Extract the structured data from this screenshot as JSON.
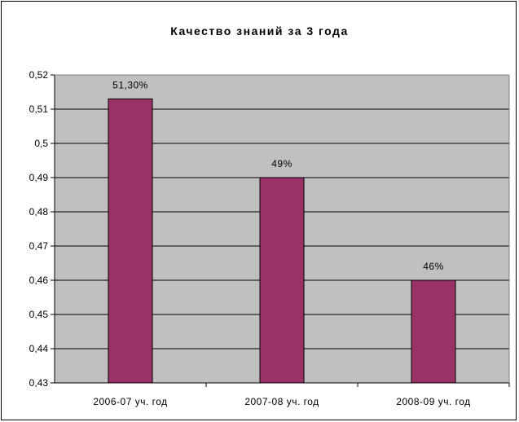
{
  "chart_data": {
    "type": "bar",
    "title": "Качество знаний за 3 года",
    "categories": [
      "2006-07 уч. год",
      "2007-08 уч. год",
      "2008-09 уч. год"
    ],
    "values": [
      0.513,
      0.49,
      0.46
    ],
    "data_labels": [
      "51,30%",
      "49%",
      "46%"
    ],
    "ylim": [
      0.43,
      0.52
    ],
    "yticks": [
      0.43,
      0.44,
      0.45,
      0.46,
      0.47,
      0.48,
      0.49,
      0.5,
      0.51,
      0.52
    ],
    "ytick_labels": [
      "0,43",
      "0,44",
      "0,45",
      "0,46",
      "0,47",
      "0,48",
      "0,49",
      "0,5",
      "0,51",
      "0,52"
    ],
    "grid": true,
    "legend": false,
    "colors": {
      "bar": "#993366",
      "plot_background": "#c0c0c0",
      "gridline": "#000000"
    }
  }
}
